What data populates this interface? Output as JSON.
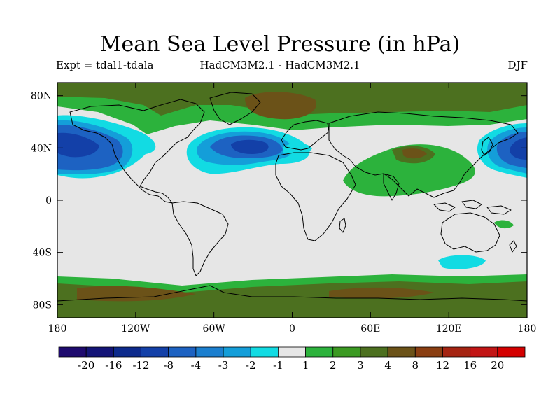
{
  "title": "Mean Sea Level Pressure (in hPa)",
  "left_label": "Expt = tdal1-tdala",
  "center_label": "HadCM3M2.1 - HadCM3M2.1",
  "right_label": "DJF",
  "lat_ticks": [
    "80N",
    "40N",
    "0",
    "40S",
    "80S"
  ],
  "lon_ticks": [
    "180",
    "120W",
    "60W",
    "0",
    "60E",
    "120E",
    "180"
  ],
  "colorbar": {
    "labels": [
      "-20",
      "-16",
      "-12",
      "-8",
      "-4",
      "-3",
      "-2",
      "-1",
      "1",
      "2",
      "3",
      "4",
      "8",
      "12",
      "16",
      "20"
    ],
    "colors": [
      "#1e0a6e",
      "#131477",
      "#0d2a8c",
      "#1340a8",
      "#1d62c2",
      "#1b7fcf",
      "#149ed9",
      "#12dbe3",
      "#e6e6e6",
      "#2cb23c",
      "#3b9a22",
      "#4c701f",
      "#6b5218",
      "#8a3e12",
      "#a52412",
      "#c21515",
      "#d40000"
    ]
  },
  "colors": {
    "neutral": "#e6e6e6",
    "pos_light": "#2cb23c",
    "pos_mid": "#4c701f",
    "pos_strong": "#6b5218",
    "neg_light": "#12dbe3",
    "neg_mid": "#149ed9",
    "neg_strong": "#1d62c2",
    "neg_core": "#1340a8",
    "coast": "#000000"
  }
}
